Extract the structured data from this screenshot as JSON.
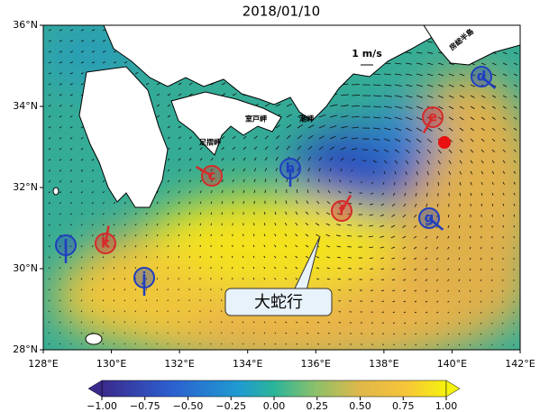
{
  "title": "2018/01/10",
  "axes": {
    "xlim": [
      128,
      142
    ],
    "xticks": [
      {
        "value": 128,
        "label": "128°E"
      },
      {
        "value": 130,
        "label": "130°E"
      },
      {
        "value": 132,
        "label": "132°E"
      },
      {
        "value": 134,
        "label": "134°E"
      },
      {
        "value": 136,
        "label": "136°E"
      },
      {
        "value": 138,
        "label": "138°E"
      },
      {
        "value": 140,
        "label": "140°E"
      },
      {
        "value": 142,
        "label": "142°E"
      }
    ],
    "ylim": [
      28,
      36
    ],
    "yticks": [
      {
        "value": 28,
        "label": "28°N"
      },
      {
        "value": 30,
        "label": "30°N"
      },
      {
        "value": 32,
        "label": "32°N"
      },
      {
        "value": 34,
        "label": "34°N"
      },
      {
        "value": 36,
        "label": "36°N"
      }
    ]
  },
  "colorbar": {
    "lim": [
      -1,
      1
    ],
    "ticks": [
      {
        "value": -1,
        "label": "−1.00"
      },
      {
        "value": -0.75,
        "label": "−0.75"
      },
      {
        "value": -0.5,
        "label": "−0.50"
      },
      {
        "value": -0.25,
        "label": "−0.25"
      },
      {
        "value": 0,
        "label": "0.00"
      },
      {
        "value": 0.25,
        "label": "0.25"
      },
      {
        "value": 0.5,
        "label": "0.50"
      },
      {
        "value": 0.75,
        "label": "0.75"
      },
      {
        "value": 1,
        "label": "1.00"
      }
    ]
  },
  "place_labels": [
    "足摺岬",
    "室戸岬",
    "潮岬",
    "房総半島"
  ],
  "scale_label": "1 m/s",
  "callout": "大蛇行",
  "markers": [
    {
      "label": "d",
      "color": "#1f3fbf"
    },
    {
      "label": "e",
      "color": "#d62a2a"
    },
    {
      "label": "h",
      "color": "#1f3fbf"
    },
    {
      "label": "c",
      "color": "#d62a2a"
    },
    {
      "label": "f",
      "color": "#d62a2a"
    },
    {
      "label": "g",
      "color": "#1f3fbf"
    },
    {
      "label": "l",
      "color": "#1f3fbf"
    },
    {
      "label": "k",
      "color": "#d62a2a"
    },
    {
      "label": "j",
      "color": "#1f3fbf"
    }
  ]
}
